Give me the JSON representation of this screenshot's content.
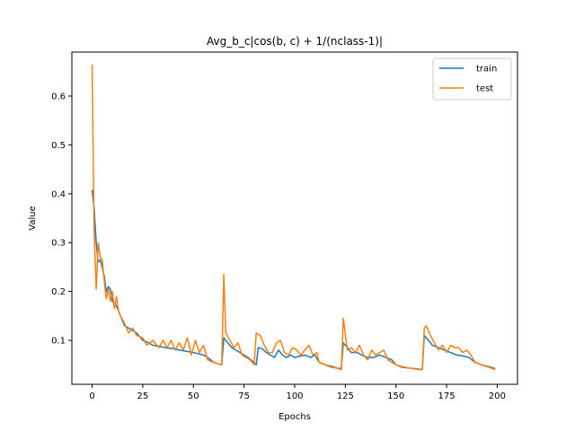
{
  "chart_data": {
    "type": "line",
    "title": "Avg_b_c|cos(b, c) + 1/(nclass-1)|",
    "xlabel": "Epochs",
    "ylabel": "Value",
    "xlim": [
      -10,
      210
    ],
    "ylim": [
      0.01,
      0.69
    ],
    "xticks": [
      0,
      25,
      50,
      75,
      100,
      125,
      150,
      175,
      200
    ],
    "yticks": [
      0.1,
      0.2,
      0.3,
      0.4,
      0.5,
      0.6
    ],
    "grid": false,
    "legend_position": "top-right",
    "series": [
      {
        "name": "train",
        "color": "#1f77b4",
        "points": [
          [
            0,
            0.408
          ],
          [
            1,
            0.37
          ],
          [
            2,
            0.3
          ],
          [
            3,
            0.26
          ],
          [
            4,
            0.265
          ],
          [
            5,
            0.25
          ],
          [
            6,
            0.23
          ],
          [
            7,
            0.2
          ],
          [
            8,
            0.21
          ],
          [
            9,
            0.205
          ],
          [
            10,
            0.18
          ],
          [
            12,
            0.17
          ],
          [
            14,
            0.15
          ],
          [
            16,
            0.13
          ],
          [
            18,
            0.125
          ],
          [
            20,
            0.12
          ],
          [
            22,
            0.115
          ],
          [
            25,
            0.1
          ],
          [
            28,
            0.095
          ],
          [
            30,
            0.09
          ],
          [
            33,
            0.088
          ],
          [
            36,
            0.085
          ],
          [
            40,
            0.083
          ],
          [
            43,
            0.08
          ],
          [
            46,
            0.078
          ],
          [
            50,
            0.075
          ],
          [
            53,
            0.072
          ],
          [
            55,
            0.07
          ],
          [
            57,
            0.065
          ],
          [
            60,
            0.055
          ],
          [
            62,
            0.052
          ],
          [
            64,
            0.05
          ],
          [
            65,
            0.105
          ],
          [
            67,
            0.095
          ],
          [
            69,
            0.085
          ],
          [
            71,
            0.08
          ],
          [
            73,
            0.075
          ],
          [
            75,
            0.07
          ],
          [
            77,
            0.065
          ],
          [
            79,
            0.058
          ],
          [
            81,
            0.05
          ],
          [
            82,
            0.085
          ],
          [
            84,
            0.083
          ],
          [
            86,
            0.075
          ],
          [
            88,
            0.07
          ],
          [
            90,
            0.065
          ],
          [
            92,
            0.08
          ],
          [
            94,
            0.07
          ],
          [
            96,
            0.065
          ],
          [
            98,
            0.07
          ],
          [
            100,
            0.065
          ],
          [
            103,
            0.068
          ],
          [
            105,
            0.07
          ],
          [
            108,
            0.065
          ],
          [
            110,
            0.07
          ],
          [
            112,
            0.055
          ],
          [
            115,
            0.05
          ],
          [
            118,
            0.047
          ],
          [
            121,
            0.043
          ],
          [
            123,
            0.042
          ],
          [
            124,
            0.095
          ],
          [
            126,
            0.085
          ],
          [
            128,
            0.075
          ],
          [
            131,
            0.075
          ],
          [
            133,
            0.07
          ],
          [
            136,
            0.065
          ],
          [
            139,
            0.065
          ],
          [
            142,
            0.07
          ],
          [
            145,
            0.065
          ],
          [
            148,
            0.06
          ],
          [
            150,
            0.05
          ],
          [
            153,
            0.045
          ],
          [
            157,
            0.043
          ],
          [
            160,
            0.042
          ],
          [
            163,
            0.04
          ],
          [
            164,
            0.11
          ],
          [
            166,
            0.1
          ],
          [
            168,
            0.09
          ],
          [
            171,
            0.085
          ],
          [
            174,
            0.08
          ],
          [
            177,
            0.075
          ],
          [
            180,
            0.07
          ],
          [
            183,
            0.068
          ],
          [
            186,
            0.065
          ],
          [
            189,
            0.055
          ],
          [
            192,
            0.05
          ],
          [
            196,
            0.046
          ],
          [
            199,
            0.042
          ]
        ]
      },
      {
        "name": "test",
        "color": "#ff7f0e",
        "points": [
          [
            0,
            0.665
          ],
          [
            1,
            0.32
          ],
          [
            2,
            0.205
          ],
          [
            3,
            0.3
          ],
          [
            4,
            0.27
          ],
          [
            5,
            0.265
          ],
          [
            6,
            0.22
          ],
          [
            7,
            0.185
          ],
          [
            8,
            0.205
          ],
          [
            9,
            0.18
          ],
          [
            10,
            0.2
          ],
          [
            11,
            0.165
          ],
          [
            12,
            0.19
          ],
          [
            13,
            0.16
          ],
          [
            14,
            0.15
          ],
          [
            16,
            0.135
          ],
          [
            18,
            0.115
          ],
          [
            20,
            0.125
          ],
          [
            22,
            0.11
          ],
          [
            25,
            0.105
          ],
          [
            27,
            0.09
          ],
          [
            30,
            0.1
          ],
          [
            33,
            0.085
          ],
          [
            35,
            0.1
          ],
          [
            37,
            0.085
          ],
          [
            39,
            0.1
          ],
          [
            41,
            0.08
          ],
          [
            43,
            0.095
          ],
          [
            45,
            0.08
          ],
          [
            47,
            0.105
          ],
          [
            49,
            0.07
          ],
          [
            51,
            0.1
          ],
          [
            53,
            0.075
          ],
          [
            55,
            0.09
          ],
          [
            57,
            0.06
          ],
          [
            60,
            0.055
          ],
          [
            62,
            0.052
          ],
          [
            64,
            0.05
          ],
          [
            65,
            0.235
          ],
          [
            66,
            0.115
          ],
          [
            68,
            0.1
          ],
          [
            70,
            0.085
          ],
          [
            72,
            0.095
          ],
          [
            74,
            0.07
          ],
          [
            76,
            0.065
          ],
          [
            78,
            0.06
          ],
          [
            80,
            0.05
          ],
          [
            81,
            0.115
          ],
          [
            83,
            0.11
          ],
          [
            85,
            0.09
          ],
          [
            87,
            0.075
          ],
          [
            89,
            0.075
          ],
          [
            91,
            0.095
          ],
          [
            93,
            0.1
          ],
          [
            95,
            0.075
          ],
          [
            97,
            0.07
          ],
          [
            99,
            0.085
          ],
          [
            101,
            0.08
          ],
          [
            103,
            0.07
          ],
          [
            105,
            0.08
          ],
          [
            107,
            0.09
          ],
          [
            109,
            0.07
          ],
          [
            111,
            0.075
          ],
          [
            112,
            0.055
          ],
          [
            115,
            0.05
          ],
          [
            118,
            0.045
          ],
          [
            121,
            0.043
          ],
          [
            123,
            0.04
          ],
          [
            124,
            0.145
          ],
          [
            126,
            0.08
          ],
          [
            128,
            0.085
          ],
          [
            130,
            0.075
          ],
          [
            132,
            0.09
          ],
          [
            134,
            0.07
          ],
          [
            136,
            0.06
          ],
          [
            138,
            0.08
          ],
          [
            140,
            0.07
          ],
          [
            142,
            0.075
          ],
          [
            144,
            0.08
          ],
          [
            146,
            0.06
          ],
          [
            148,
            0.055
          ],
          [
            150,
            0.05
          ],
          [
            153,
            0.046
          ],
          [
            157,
            0.043
          ],
          [
            160,
            0.041
          ],
          [
            163,
            0.04
          ],
          [
            164,
            0.125
          ],
          [
            165,
            0.13
          ],
          [
            167,
            0.11
          ],
          [
            169,
            0.095
          ],
          [
            171,
            0.08
          ],
          [
            173,
            0.09
          ],
          [
            175,
            0.075
          ],
          [
            177,
            0.09
          ],
          [
            179,
            0.085
          ],
          [
            181,
            0.085
          ],
          [
            183,
            0.075
          ],
          [
            185,
            0.08
          ],
          [
            187,
            0.07
          ],
          [
            189,
            0.055
          ],
          [
            192,
            0.05
          ],
          [
            196,
            0.045
          ],
          [
            199,
            0.04
          ]
        ]
      }
    ]
  }
}
